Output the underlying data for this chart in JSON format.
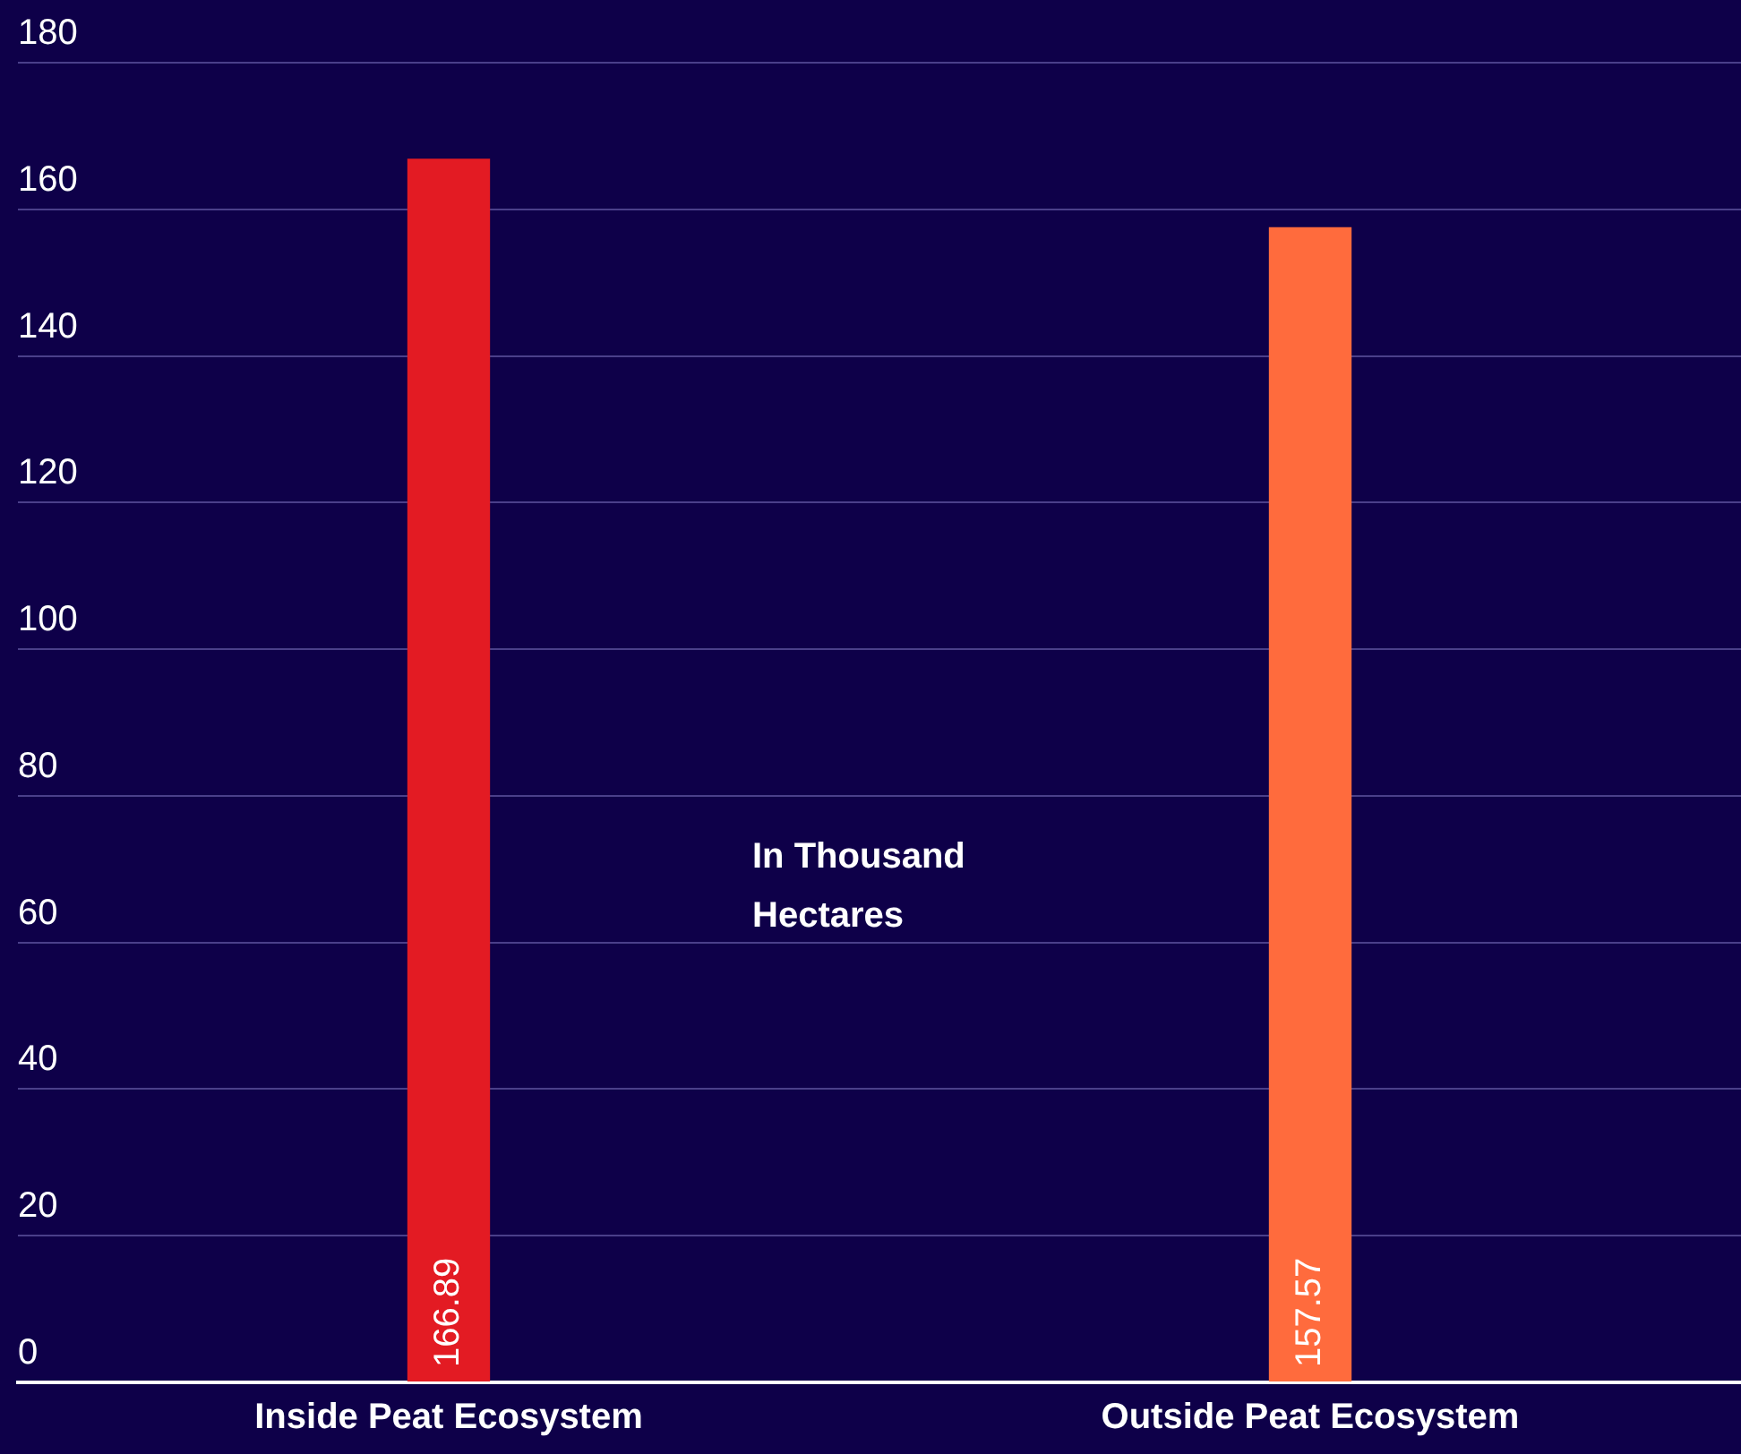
{
  "chart_data": {
    "type": "bar",
    "categories": [
      "Inside Peat Ecosystem",
      "Outside Peat Ecosystem"
    ],
    "values": [
      166.89,
      157.57
    ],
    "colors": [
      "#e31b23",
      "#ff6b3d"
    ],
    "ylim": [
      0,
      180
    ],
    "yticks": [
      0,
      20,
      40,
      60,
      80,
      100,
      120,
      140,
      160,
      180
    ],
    "grid": "y",
    "legend": false,
    "data_labels": true,
    "annotations": [
      "In Thousand Hectares"
    ]
  }
}
